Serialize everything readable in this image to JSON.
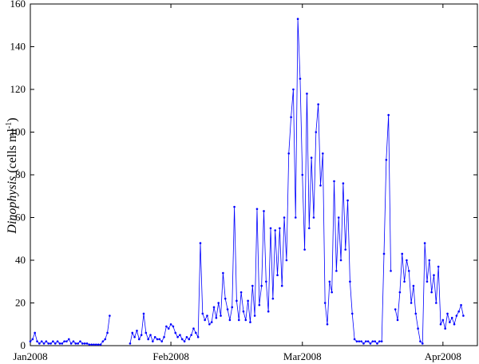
{
  "chart_data": {
    "type": "line",
    "ylabel": {
      "italic": "Dinophysis",
      "unit": "(cells ml",
      "exp": "-1",
      "close": ")"
    },
    "xlim": [
      0,
      98.6
    ],
    "xticks": [
      {
        "value": 0,
        "label": "Jan2008"
      },
      {
        "value": 31,
        "label": "Feb2008"
      },
      {
        "value": 60,
        "label": "Mar2008"
      },
      {
        "value": 91,
        "label": "Apr2008"
      }
    ],
    "ylim": [
      0,
      160
    ],
    "yticks": [
      0,
      20,
      40,
      60,
      80,
      100,
      120,
      140,
      160
    ],
    "series": [
      {
        "color": "#0000ff",
        "x": [
          0,
          0.5,
          1,
          1.5,
          2,
          2.5,
          3,
          3.5,
          4,
          4.5,
          5,
          5.5,
          6,
          6.5,
          7,
          7.5,
          8,
          8.5,
          9,
          9.5,
          10,
          10.5,
          11,
          11.5,
          12,
          12.5,
          13,
          13.5,
          14,
          14.5,
          15,
          15.5,
          16,
          16.5,
          17,
          17.5,
          18,
          18.5,
          19,
          19.5,
          20,
          20.5,
          21,
          21.5,
          22,
          22.5,
          23,
          23.5,
          24,
          24.5,
          25,
          25.5,
          26,
          26.5,
          27,
          27.5,
          28,
          28.5,
          29,
          29.5,
          30,
          30.5,
          31,
          31.5,
          32,
          32.5,
          33,
          33.5,
          34,
          34.5,
          35,
          35.5,
          36,
          36.5,
          37,
          37.5,
          38,
          38.5,
          39,
          39.5,
          40,
          40.5,
          41,
          41.5,
          42,
          42.5,
          43,
          43.5,
          44,
          44.5,
          45,
          45.5,
          46,
          46.5,
          47,
          47.5,
          48,
          48.5,
          49,
          49.5,
          50,
          50.5,
          51,
          51.5,
          52,
          52.5,
          53,
          53.5,
          54,
          54.5,
          55,
          55.5,
          56,
          56.5,
          57,
          57.5,
          58,
          58.5,
          59,
          59.5,
          60,
          60.5,
          61,
          61.5,
          62,
          62.5,
          63,
          63.5,
          64,
          64.5,
          65,
          65.5,
          66,
          66.5,
          67,
          67.5,
          68,
          68.5,
          69,
          69.5,
          70,
          70.5,
          71,
          71.5,
          72,
          72.5,
          73,
          73.5,
          74,
          74.5,
          75,
          75.5,
          76,
          76.5,
          77,
          77.5,
          78,
          78.5,
          79,
          79.5,
          80,
          80.5,
          81,
          81.5,
          82,
          82.5,
          83,
          83.5,
          84,
          84.5,
          85,
          85.5,
          86,
          86.5,
          87,
          87.5,
          88,
          88.5,
          89,
          89.5,
          90,
          90.5,
          91,
          91.5,
          92,
          92.5,
          93,
          93.5,
          94,
          94.5,
          95,
          95.5
        ],
        "values": [
          2,
          3,
          6,
          2,
          1,
          2,
          1,
          2,
          1,
          1,
          2,
          1,
          2,
          1,
          1,
          2,
          2,
          3,
          1,
          2,
          1,
          1,
          2,
          1,
          1,
          1,
          0.5,
          0.5,
          0.5,
          0.5,
          0.5,
          0.5,
          2,
          3,
          6,
          14,
          null,
          null,
          null,
          null,
          null,
          null,
          null,
          null,
          1,
          6,
          4,
          7,
          3,
          5,
          15,
          6,
          3,
          5,
          2,
          4,
          3,
          3,
          2,
          4,
          9,
          8,
          10,
          9,
          6,
          4,
          5,
          3,
          2,
          4,
          3,
          5,
          8,
          6,
          4,
          48,
          15,
          12,
          14,
          10,
          11,
          18,
          13,
          20,
          14,
          34,
          22,
          17,
          12,
          18,
          65,
          21,
          12,
          25,
          16,
          12,
          21,
          11,
          28,
          14,
          64,
          19,
          28,
          63,
          30,
          16,
          55,
          22,
          54,
          33,
          55,
          28,
          60,
          40,
          90,
          107,
          120,
          60,
          153,
          125,
          80,
          45,
          118,
          55,
          88,
          60,
          100,
          113,
          75,
          90,
          20,
          10,
          30,
          25,
          77,
          35,
          60,
          40,
          76,
          45,
          68,
          30,
          15,
          3,
          2,
          2,
          2,
          1,
          2,
          2,
          1,
          2,
          2,
          1,
          2,
          2,
          43,
          87,
          108,
          35,
          null,
          17,
          12,
          25,
          43,
          30,
          40,
          35,
          20,
          28,
          15,
          8,
          2,
          1,
          48,
          30,
          40,
          25,
          33,
          20,
          37,
          10,
          12,
          8,
          15,
          11,
          13,
          10,
          14,
          16,
          19,
          14
        ]
      }
    ]
  }
}
